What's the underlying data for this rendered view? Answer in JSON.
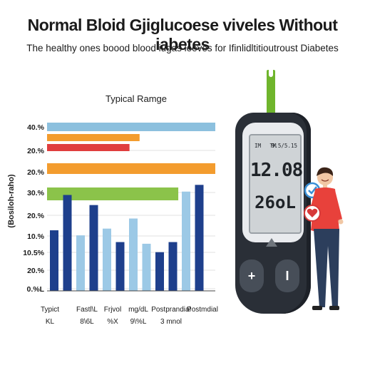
{
  "header": {
    "title": "Normal Bloid Gjiglucoese viveles Without iabetes",
    "subtitle": "The healthy ones boood blood iugas leeves for Ifinlidltitioutroust Diabetes"
  },
  "chart_data": {
    "type": "bar",
    "title": "Typical Ramge",
    "ylabel": "(Bosiloh-raho)",
    "yticks": [
      "40.%",
      "20.%",
      "20.%",
      "30.%",
      "20.%",
      "10.%",
      "10.5%",
      "20.%",
      "0.%L"
    ],
    "ranges": [
      {
        "color": "#8cc0de",
        "length": 1.0
      },
      {
        "color": "#f39c2e",
        "length": 0.55
      },
      {
        "color": "#e03e3e",
        "length": 0.49
      },
      {
        "color": "#f39c2e",
        "length": 1.0
      },
      {
        "color": "#8bc34a",
        "length": 0.78
      }
    ],
    "bars": [
      {
        "level": 0.36,
        "color": "#1e3f8c"
      },
      {
        "level": 0.57,
        "color": "#1e3f8c"
      },
      {
        "level": 0.33,
        "color": "#9cc9e6"
      },
      {
        "level": 0.51,
        "color": "#1e3f8c"
      },
      {
        "level": 0.37,
        "color": "#9cc9e6"
      },
      {
        "level": 0.29,
        "color": "#1e3f8c"
      },
      {
        "level": 0.43,
        "color": "#9cc9e6"
      },
      {
        "level": 0.28,
        "color": "#9cc9e6"
      },
      {
        "level": 0.23,
        "color": "#1e3f8c"
      },
      {
        "level": 0.29,
        "color": "#1e3f8c"
      },
      {
        "level": 0.59,
        "color": "#9cc9e6"
      },
      {
        "level": 0.63,
        "color": "#1e3f8c"
      }
    ],
    "xlabels": [
      {
        "line1": "Typict",
        "line2": "KL"
      },
      {
        "line1": "Fastl\\L",
        "line2": "8\\6L"
      },
      {
        "line1": "Frjvol",
        "line2": "%X"
      },
      {
        "line1": "mg/dL",
        "line2": "9\\%L"
      },
      {
        "line1": "Postprandial",
        "line2": "3 mnol"
      },
      {
        "line1": "Postmdial",
        "line2": ""
      }
    ]
  },
  "meter": {
    "top_left": "IM",
    "top_mid": "TM",
    "top_right": "9.5/5.15",
    "reading_primary": "12.08",
    "reading_secondary": "26oL",
    "minus_button": "+",
    "plus_button": "I"
  },
  "colors": {
    "meter_body": "#2a2f37",
    "strip": "#6fb52c",
    "shirt": "#e8413b",
    "pants": "#2c3e5c"
  }
}
